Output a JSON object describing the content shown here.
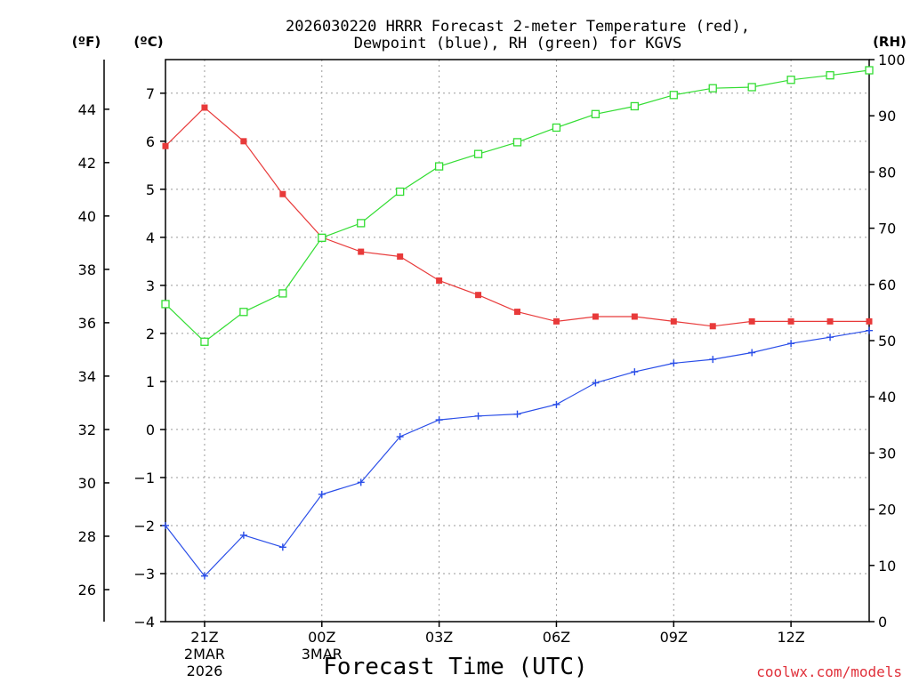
{
  "chart_data": {
    "type": "line",
    "title_lines": [
      "2026030220 HRRR Forecast 2-meter Temperature (red),",
      "Dewpoint (blue), RH (green) for KGVS"
    ],
    "xlabel": "Forecast Time (UTC)",
    "credit": "coolwx.com/models",
    "units": {
      "left_f": "(ºF)",
      "left_c": "(ºC)",
      "right": "(RH)"
    },
    "x_hours": [
      20,
      21,
      22,
      23,
      24,
      25,
      26,
      27,
      28,
      29,
      30,
      31,
      32,
      33,
      34,
      35,
      36,
      37,
      38
    ],
    "x_range": [
      20,
      38
    ],
    "x_ticks": [
      {
        "hour": 21,
        "lines": [
          "21Z",
          "2MAR",
          "2026"
        ]
      },
      {
        "hour": 24,
        "lines": [
          "00Z",
          "3MAR"
        ]
      },
      {
        "hour": 27,
        "lines": [
          "03Z"
        ]
      },
      {
        "hour": 30,
        "lines": [
          "06Z"
        ]
      },
      {
        "hour": 33,
        "lines": [
          "09Z"
        ]
      },
      {
        "hour": 36,
        "lines": [
          "12Z"
        ]
      }
    ],
    "y_celsius_range": [
      -4,
      7.7
    ],
    "y_celsius_ticks": [
      "-4",
      "-3",
      "-2",
      "-1",
      "0",
      "1",
      "2",
      "3",
      "4",
      "5",
      "6",
      "7"
    ],
    "y_fahrenheit_ticks": [
      "26",
      "28",
      "30",
      "32",
      "34",
      "36",
      "38",
      "40",
      "42",
      "44"
    ],
    "y_rh_range": [
      0,
      100
    ],
    "y_rh_ticks": [
      "0",
      "10",
      "20",
      "30",
      "40",
      "50",
      "60",
      "70",
      "80",
      "90",
      "100"
    ],
    "series": [
      {
        "name": "2-meter Temperature",
        "unit": "C",
        "axis": "left",
        "color": "#e83a3a",
        "marker": "filled-square",
        "values": [
          5.9,
          6.7,
          6.0,
          4.9,
          4.0,
          3.7,
          3.6,
          3.1,
          2.8,
          2.45,
          2.25,
          2.35,
          2.35,
          2.25,
          2.15,
          2.25,
          2.25,
          2.25,
          2.25
        ]
      },
      {
        "name": "Dewpoint",
        "unit": "C",
        "axis": "left",
        "color": "#2a4ee8",
        "marker": "plus",
        "values": [
          -2.0,
          -3.05,
          -2.2,
          -2.45,
          -1.35,
          -1.1,
          -0.15,
          0.2,
          0.28,
          0.32,
          0.52,
          0.97,
          1.2,
          1.38,
          1.46,
          1.6,
          1.79,
          1.92,
          2.06
        ]
      },
      {
        "name": "RH",
        "unit": "%",
        "axis": "right",
        "color": "#33dd33",
        "marker": "open-square",
        "values": [
          56.5,
          49.8,
          55.1,
          58.4,
          68.3,
          70.9,
          76.5,
          81.0,
          83.2,
          85.3,
          87.9,
          90.3,
          91.7,
          93.7,
          94.9,
          95.1,
          96.4,
          97.2,
          98.1
        ]
      }
    ]
  }
}
